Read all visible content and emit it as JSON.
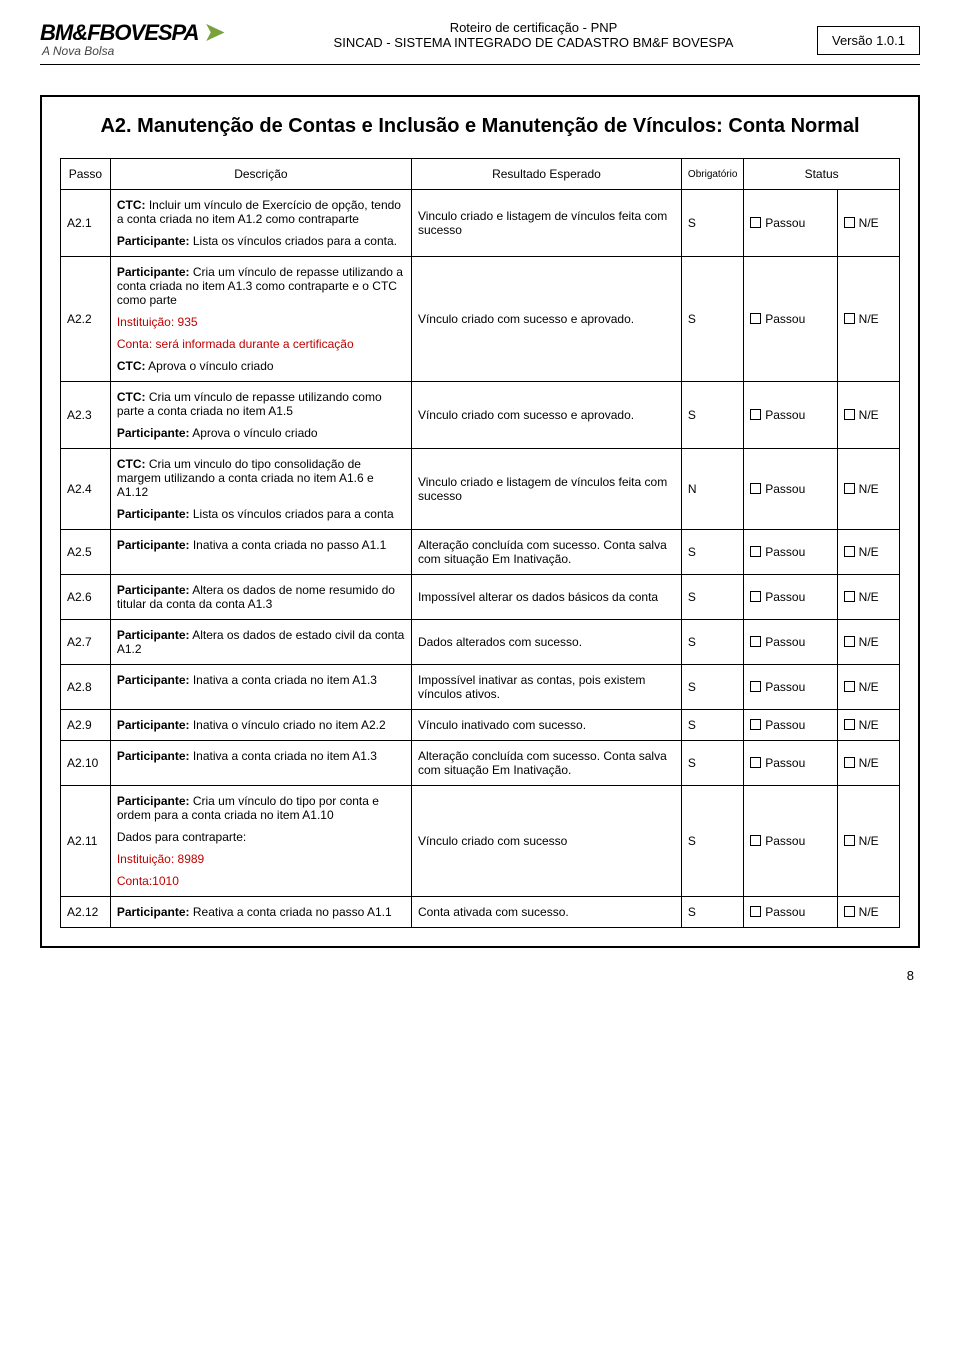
{
  "header": {
    "logo_main": "BM&FBOVESPA",
    "logo_sub": "A Nova Bolsa",
    "line1": "Roteiro de certificação - PNP",
    "line2": "SINCAD - SISTEMA INTEGRADO DE CADASTRO BM&F BOVESPA",
    "version": "Versão 1.0.1"
  },
  "section": {
    "title": "A2. Manutenção de Contas e Inclusão e Manutenção de Vínculos: Conta Normal"
  },
  "columns": {
    "passo": "Passo",
    "descricao": "Descrição",
    "resultado": "Resultado Esperado",
    "obrig": "Obrigatório",
    "status": "Status"
  },
  "status_labels": {
    "passou": "Passou",
    "ne": "N/E"
  },
  "rows": [
    {
      "passo": "A2.1",
      "desc": [
        {
          "b": "CTC:",
          "t": " Incluir um vínculo de Exercício de opção, tendo a conta criada no item A1.2 como contraparte"
        },
        {
          "b": "Participante:",
          "t": " Lista os vínculos criados para a conta."
        }
      ],
      "resultado": "Vinculo criado e listagem de vínculos feita com sucesso",
      "obr": "S"
    },
    {
      "passo": "A2.2",
      "desc": [
        {
          "b": "Participante:",
          "t": " Cria um vínculo de repasse utilizando a conta criada no item A1.3 como contraparte e o CTC como parte"
        },
        {
          "red": true,
          "t": "Instituição: 935"
        },
        {
          "red": true,
          "t": "Conta: será informada durante a certificação"
        },
        {
          "b": "CTC:",
          "t": " Aprova o vínculo criado"
        }
      ],
      "resultado": "Vínculo criado com sucesso e aprovado.",
      "obr": "S"
    },
    {
      "passo": "A2.3",
      "desc": [
        {
          "b": "CTC:",
          "t": " Cria um vínculo de repasse utilizando como parte a conta criada no item A1.5"
        },
        {
          "b": "Participante:",
          "t": " Aprova o vínculo criado"
        }
      ],
      "resultado": "Vínculo criado com sucesso e aprovado.",
      "obr": "S"
    },
    {
      "passo": "A2.4",
      "desc": [
        {
          "b": "CTC:",
          "t": " Cria um vinculo do tipo consolidação de margem utilizando a conta criada no item A1.6 e A1.12"
        },
        {
          "b": "Participante:",
          "t": " Lista os vínculos criados para a conta"
        }
      ],
      "resultado": "Vinculo criado e listagem de vínculos feita com sucesso",
      "obr": "N"
    },
    {
      "passo": "A2.5",
      "desc": [
        {
          "b": "Participante:",
          "t": " Inativa a conta criada no passo A1.1"
        }
      ],
      "resultado": "Alteração concluída com sucesso. Conta salva com situação Em Inativação.",
      "obr": "S"
    },
    {
      "passo": "A2.6",
      "desc": [
        {
          "b": "Participante:",
          "t": " Altera os dados de nome resumido do titular da conta da conta A1.3"
        }
      ],
      "resultado": "Impossível alterar os dados básicos da conta",
      "obr": "S"
    },
    {
      "passo": "A2.7",
      "desc": [
        {
          "b": "Participante:",
          "t": " Altera os dados de estado civil da conta A1.2"
        }
      ],
      "resultado": "Dados alterados com sucesso.",
      "obr": "S"
    },
    {
      "passo": "A2.8",
      "desc": [
        {
          "b": "Participante:",
          "t": " Inativa a conta criada no item A1.3"
        }
      ],
      "resultado": "Impossível inativar as contas, pois existem vínculos ativos.",
      "obr": "S"
    },
    {
      "passo": "A2.9",
      "desc": [
        {
          "b": "Participante:",
          "t": " Inativa o vínculo criado no item A2.2"
        }
      ],
      "resultado": "Vínculo inativado com sucesso.",
      "obr": "S"
    },
    {
      "passo": "A2.10",
      "desc": [
        {
          "b": "Participante:",
          "t": " Inativa a conta criada no item A1.3"
        }
      ],
      "resultado": "Alteração concluída com sucesso. Conta salva com situação Em Inativação.",
      "obr": "S"
    },
    {
      "passo": "A2.11",
      "desc": [
        {
          "b": "Participante:",
          "t": " Cria um vínculo do tipo por conta e ordem para a conta criada no item A1.10"
        },
        {
          "t": "Dados para contraparte:"
        },
        {
          "red": true,
          "t": "Instituição: 8989"
        },
        {
          "red": true,
          "t": "Conta:1010"
        }
      ],
      "resultado": "Vínculo criado com sucesso",
      "obr": "S"
    },
    {
      "passo": "A2.12",
      "desc": [
        {
          "b": "Participante:",
          "t": " Reativa a conta criada no passo A1.1"
        }
      ],
      "resultado": "Conta ativada com sucesso.",
      "obr": "S"
    }
  ],
  "footer": {
    "page": "8"
  }
}
